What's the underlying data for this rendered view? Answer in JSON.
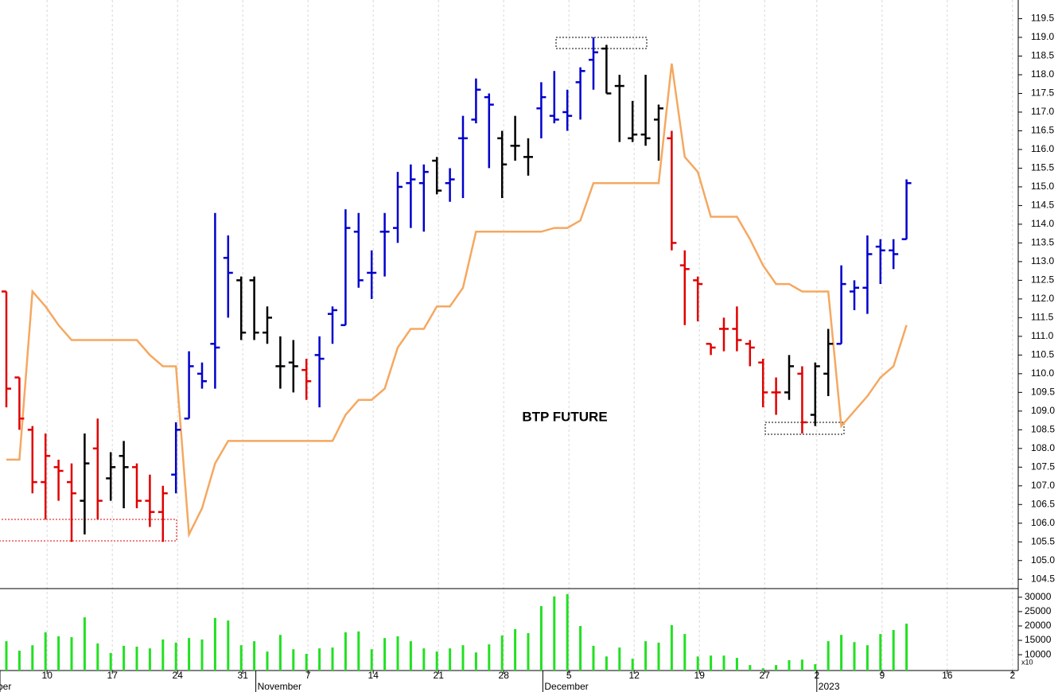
{
  "chart_data": [
    {
      "type": "ohlc",
      "annotation": "BTP FUTURE",
      "ylim": [
        104.25,
        120
      ],
      "yticks": [
        104.5,
        {
          "value": 105,
          "label": "105.0"
        },
        105.5,
        {
          "value": 106,
          "label": "106.0"
        },
        106.5,
        {
          "value": 107,
          "label": "107.0"
        },
        107.5,
        {
          "value": 108,
          "label": "108.0"
        },
        108.5,
        {
          "value": 109,
          "label": "109.0"
        },
        109.5,
        {
          "value": 110,
          "label": "110.0"
        },
        110.5,
        {
          "value": 111,
          "label": "111.0"
        },
        111.5,
        {
          "value": 112,
          "label": "112.0"
        },
        112.5,
        {
          "value": 113,
          "label": "113.0"
        },
        113.5,
        {
          "value": 114,
          "label": "114.0"
        },
        114.5,
        {
          "value": 115,
          "label": "115.0"
        },
        115.5,
        {
          "value": 116,
          "label": "116.0"
        },
        116.5,
        {
          "value": 117,
          "label": "117.0"
        },
        117.5,
        {
          "value": 118,
          "label": "118.0"
        },
        118.5,
        {
          "value": 119,
          "label": "119.0"
        },
        119.5
      ],
      "open": [
        112.2,
        109.9,
        108.5,
        107.1,
        107.5,
        107.1,
        106.6,
        108.0,
        107.2,
        107.8,
        107.5,
        106.6,
        106.3,
        107.3,
        108.8,
        110.0,
        110.8,
        113.1,
        112.5,
        112.5,
        111.1,
        110.2,
        110.3,
        110.1,
        110.5,
        111.6,
        111.3,
        113.8,
        112.7,
        113.8,
        113.9,
        115.1,
        115.1,
        115.7,
        115.1,
        116.3,
        116.8,
        117.4,
        116.3,
        116.1,
        115.8,
        117.1,
        116.9,
        117.0,
        117.8,
        118.4,
        118.7,
        117.7,
        116.3,
        116.4,
        116.8,
        116.3,
        112.9,
        112.5,
        110.8,
        111.2,
        111.2,
        110.8,
        110.3,
        109.5,
        109.5,
        110.0,
        108.9,
        110.0,
        110.8,
        112.2,
        112.3,
        113.4,
        113.3,
        113.6,
        null,
        null,
        null,
        null,
        null,
        null,
        null,
        null
      ],
      "high": [
        112.2,
        109.9,
        108.6,
        108.4,
        107.7,
        107.6,
        108.4,
        108.8,
        107.9,
        108.2,
        107.6,
        107.3,
        107.0,
        108.7,
        110.6,
        110.3,
        114.3,
        113.7,
        112.6,
        112.6,
        111.8,
        111.0,
        110.9,
        110.4,
        111.0,
        111.8,
        114.4,
        114.3,
        113.3,
        114.3,
        115.4,
        115.6,
        115.6,
        115.8,
        115.5,
        116.9,
        117.9,
        117.5,
        116.5,
        116.9,
        116.3,
        117.8,
        118.1,
        117.6,
        118.2,
        119.0,
        118.8,
        118.0,
        117.3,
        118.0,
        117.2,
        116.5,
        113.3,
        112.6,
        110.8,
        111.5,
        111.8,
        110.9,
        110.4,
        109.9,
        110.5,
        110.2,
        110.3,
        111.2,
        112.9,
        112.5,
        113.7,
        113.6,
        113.6,
        115.2,
        null,
        null,
        null,
        null,
        null,
        null,
        null,
        null
      ],
      "low": [
        109.1,
        108.5,
        106.8,
        106.1,
        106.6,
        105.5,
        105.7,
        106.1,
        106.6,
        106.4,
        106.4,
        105.9,
        105.5,
        106.8,
        108.8,
        109.6,
        109.6,
        111.5,
        110.9,
        110.9,
        110.8,
        109.6,
        109.5,
        109.3,
        109.1,
        110.8,
        111.3,
        112.3,
        112.0,
        112.6,
        113.5,
        113.9,
        113.8,
        114.8,
        114.6,
        114.7,
        116.7,
        115.5,
        114.7,
        115.7,
        115.3,
        116.3,
        116.7,
        116.5,
        116.8,
        117.6,
        117.5,
        116.2,
        116.2,
        116.1,
        115.7,
        113.3,
        111.3,
        111.4,
        110.5,
        110.6,
        110.6,
        110.2,
        109.1,
        108.9,
        109.3,
        108.4,
        108.6,
        109.4,
        110.8,
        111.7,
        111.6,
        112.4,
        112.8,
        113.6,
        null,
        null,
        null,
        null,
        null,
        null,
        null,
        null
      ],
      "close": [
        109.6,
        108.8,
        107.1,
        107.8,
        107.4,
        106.8,
        107.6,
        106.6,
        107.5,
        107.5,
        106.6,
        106.3,
        106.8,
        108.5,
        110.2,
        109.8,
        110.7,
        112.7,
        111.1,
        111.1,
        111.5,
        110.2,
        110.2,
        109.8,
        110.4,
        111.7,
        113.9,
        112.5,
        112.7,
        113.8,
        115.0,
        115.2,
        115.4,
        114.9,
        115.2,
        116.3,
        117.6,
        117.2,
        115.6,
        116.1,
        115.8,
        117.4,
        116.8,
        116.9,
        118.1,
        118.6,
        117.5,
        117.7,
        116.4,
        116.3,
        117.1,
        113.5,
        112.8,
        112.4,
        110.7,
        111.2,
        110.9,
        110.7,
        109.5,
        109.5,
        110.2,
        108.7,
        110.2,
        110.8,
        112.4,
        112.3,
        113.2,
        113.3,
        113.2,
        115.1,
        null,
        null,
        null,
        null,
        null,
        null,
        null,
        null
      ],
      "bar_colors": [
        "#e00000",
        "#e00000",
        "#e00000",
        "#e00000",
        "#e00000",
        "#e00000",
        "#000000",
        "#e00000",
        "#000000",
        "#000000",
        "#e00000",
        "#e00000",
        "#e00000",
        "#0000cc",
        "#0000cc",
        "#0000cc",
        "#0000cc",
        "#0000cc",
        "#000000",
        "#000000",
        "#000000",
        "#000000",
        "#000000",
        "#e00000",
        "#0000cc",
        "#0000cc",
        "#0000cc",
        "#0000cc",
        "#0000cc",
        "#0000cc",
        "#0000cc",
        "#0000cc",
        "#0000cc",
        "#000000",
        "#0000cc",
        "#0000cc",
        "#0000cc",
        "#0000cc",
        "#000000",
        "#000000",
        "#000000",
        "#0000cc",
        "#0000cc",
        "#0000cc",
        "#0000cc",
        "#0000cc",
        "#000000",
        "#000000",
        "#000000",
        "#000000",
        "#000000",
        "#e00000",
        "#e00000",
        "#e00000",
        "#e00000",
        "#e00000",
        "#e00000",
        "#e00000",
        "#e00000",
        "#e00000",
        "#000000",
        "#e00000",
        "#000000",
        "#000000",
        "#0000cc",
        "#0000cc",
        "#0000cc",
        "#0000cc",
        "#0000cc",
        "#0000cc",
        null,
        null,
        null,
        null,
        null,
        null,
        null,
        null
      ],
      "line": {
        "color": "#f5a860",
        "values": [
          107.7,
          107.7,
          112.2,
          111.8,
          111.3,
          110.9,
          110.9,
          110.9,
          110.9,
          110.9,
          110.9,
          110.5,
          110.2,
          110.2,
          105.7,
          106.4,
          107.6,
          108.2,
          108.2,
          108.2,
          108.2,
          108.2,
          108.2,
          108.2,
          108.2,
          108.2,
          108.9,
          109.3,
          109.3,
          109.6,
          110.7,
          111.2,
          111.2,
          111.8,
          111.8,
          112.3,
          113.8,
          113.8,
          113.8,
          113.8,
          113.8,
          113.8,
          113.9,
          113.9,
          114.1,
          115.1,
          115.1,
          115.1,
          115.1,
          115.1,
          115.1,
          118.3,
          115.8,
          115.4,
          114.2,
          114.2,
          114.2,
          113.6,
          112.9,
          112.4,
          112.4,
          112.2,
          112.2,
          112.2,
          108.6,
          109.0,
          109.4,
          109.9,
          110.2,
          111.3,
          null,
          null,
          null,
          null,
          null,
          null,
          null,
          null
        ]
      }
    },
    {
      "type": "bar",
      "color": "#22e022",
      "note": "x10",
      "ylim": [
        4500,
        33000
      ],
      "yticks": [
        10000,
        15000,
        20000,
        25000,
        30000
      ],
      "categories": [
        null,
        null,
        null,
        "10",
        null,
        null,
        null,
        null,
        "17",
        null,
        null,
        null,
        null,
        "24",
        null,
        null,
        null,
        null,
        "31",
        null,
        null,
        null,
        null,
        "7",
        null,
        null,
        null,
        null,
        "14",
        null,
        null,
        null,
        null,
        "21",
        null,
        null,
        null,
        null,
        "28",
        null,
        null,
        null,
        null,
        "5",
        null,
        null,
        null,
        null,
        "12",
        null,
        null,
        null,
        null,
        "19",
        null,
        null,
        null,
        null,
        "27",
        null,
        null,
        null,
        "2",
        null,
        null,
        null,
        null,
        "9",
        null,
        null,
        null,
        null,
        "16",
        null,
        null,
        null,
        null,
        "2"
      ],
      "months": [
        "ber",
        null,
        null,
        null,
        null,
        null,
        null,
        null,
        null,
        null,
        null,
        null,
        null,
        null,
        null,
        null,
        null,
        null,
        null,
        "November",
        null,
        null,
        null,
        null,
        null,
        null,
        null,
        null,
        null,
        null,
        null,
        null,
        null,
        null,
        null,
        null,
        null,
        null,
        null,
        null,
        null,
        "December",
        null,
        null,
        null,
        null,
        null,
        null,
        null,
        null,
        null,
        null,
        null,
        null,
        null,
        null,
        null,
        null,
        null,
        null,
        null,
        null,
        "2023",
        null,
        null,
        null,
        null,
        null,
        null,
        null,
        null,
        null,
        null,
        null,
        null,
        null,
        null,
        null
      ],
      "values": [
        14700,
        11400,
        13300,
        17800,
        16400,
        16100,
        23000,
        13900,
        10600,
        13100,
        12800,
        12200,
        15300,
        14200,
        15800,
        15300,
        22800,
        21900,
        13300,
        14700,
        11100,
        16900,
        11900,
        10300,
        12200,
        12500,
        17800,
        18100,
        11900,
        15800,
        16400,
        14700,
        12200,
        11100,
        12200,
        13300,
        10800,
        13600,
        16700,
        18900,
        17500,
        26900,
        30300,
        31100,
        20000,
        13100,
        9400,
        12500,
        8600,
        14700,
        14200,
        20300,
        17200,
        9400,
        9700,
        9700,
        8900,
        6400,
        5300,
        6400,
        8100,
        8300,
        6700,
        14700,
        16900,
        14400,
        13300,
        17200,
        18600,
        20800,
        null,
        null,
        null,
        null,
        null,
        null,
        null,
        null
      ]
    }
  ]
}
